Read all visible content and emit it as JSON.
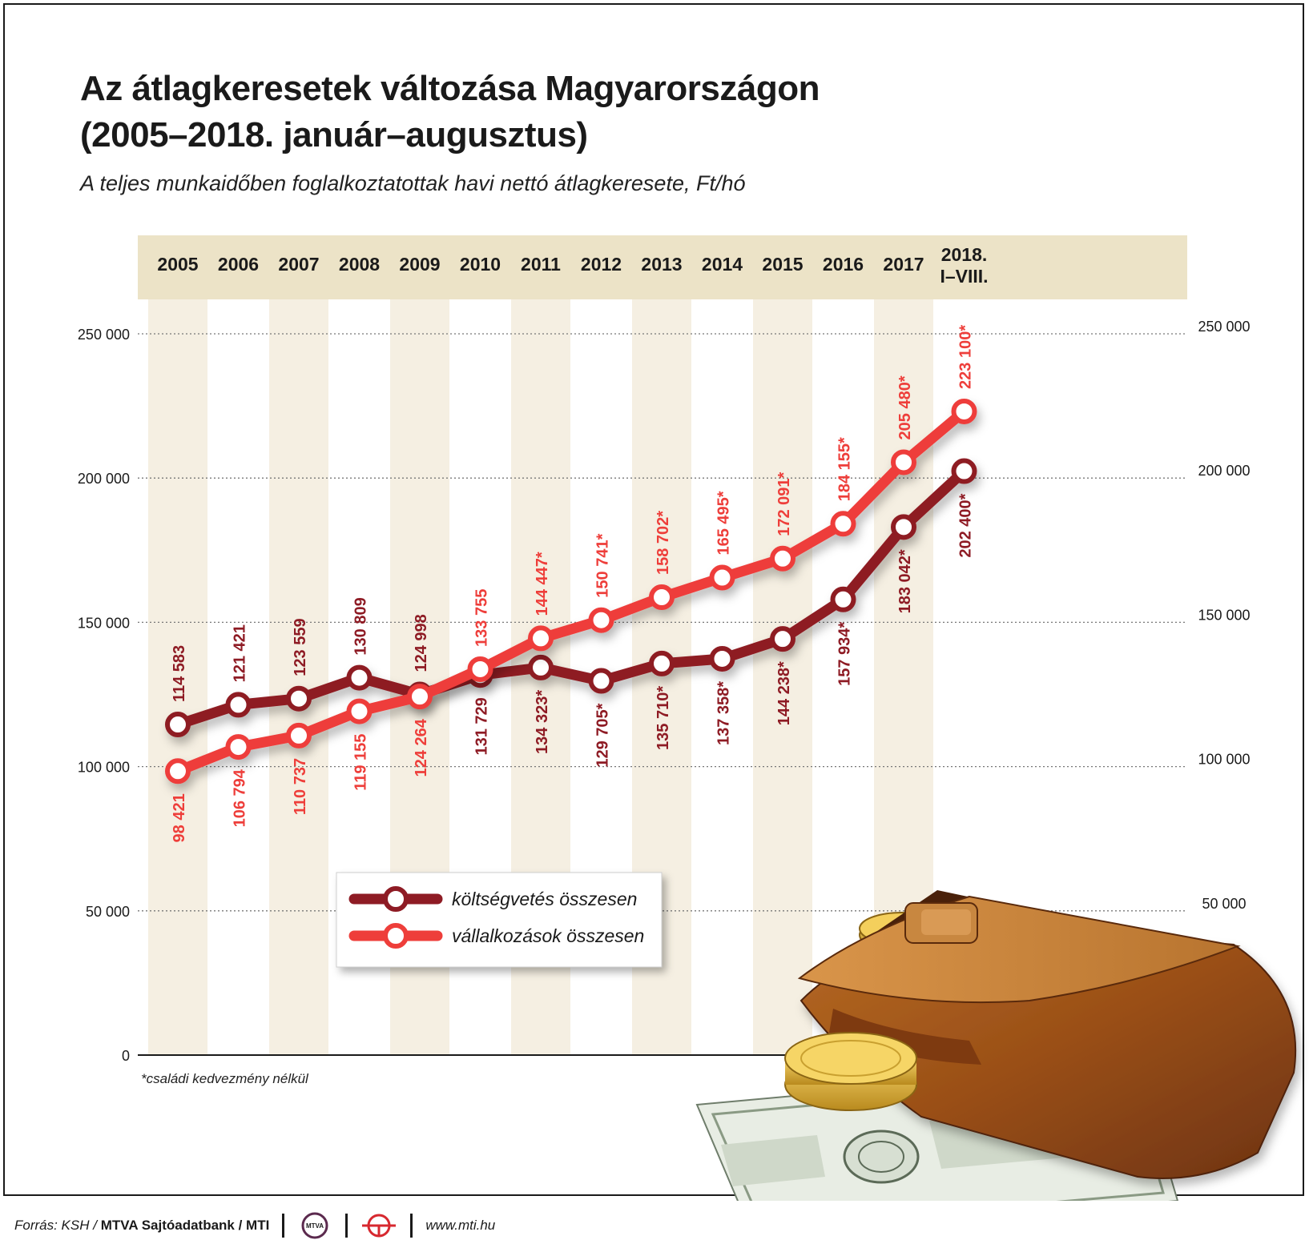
{
  "title_line1": "Az átlagkeresetek változása Magyarországon",
  "title_line2": "(2005–2018. január–augusztus)",
  "subtitle": "A teljes munkaidőben foglalkoztatottak havi nettó átlagkeresete, Ft/hó",
  "footnote": "*családi kedvezmény nélkül",
  "footer": {
    "source_prefix": "Forrás: KSH /",
    "source_bold": "MTVA Sajtóadatbank / MTI",
    "logo_text": "MTVA",
    "url": "www.mti.hu"
  },
  "colors": {
    "band": "#f5efe2",
    "header_band": "#ece3c7",
    "koltsegvetes": "#8e1b24",
    "vallalkozasok": "#ee3e3a"
  },
  "chart_data": {
    "type": "line",
    "categories": [
      "2005",
      "2006",
      "2007",
      "2008",
      "2009",
      "2010",
      "2011",
      "2012",
      "2013",
      "2014",
      "2015",
      "2016",
      "2017",
      "2018. I–VIII."
    ],
    "category_labels": [
      [
        "2005"
      ],
      [
        "2006"
      ],
      [
        "2007"
      ],
      [
        "2008"
      ],
      [
        "2009"
      ],
      [
        "2010"
      ],
      [
        "2011"
      ],
      [
        "2012"
      ],
      [
        "2013"
      ],
      [
        "2014"
      ],
      [
        "2015"
      ],
      [
        "2016"
      ],
      [
        "2017"
      ],
      [
        "2018.",
        "I–VIII."
      ]
    ],
    "ylim": [
      0,
      250000
    ],
    "yticks": [
      0,
      50000,
      100000,
      150000,
      200000,
      250000
    ],
    "ytick_labels_left": [
      "0",
      "50 000",
      "100 000",
      "150 000",
      "200 000",
      "250 000"
    ],
    "ytick_labels_right": [
      "50 000",
      "100 000",
      "150 000",
      "200 000",
      "250 000"
    ],
    "grid": true,
    "legend_position": "center-left",
    "series": [
      {
        "name": "költségvetés összesen",
        "values": [
          114583,
          121421,
          123559,
          130809,
          124998,
          131729,
          134323,
          129705,
          135710,
          137358,
          144238,
          157934,
          183042,
          202400
        ],
        "labels": [
          "114 583",
          "121 421",
          "123 559",
          "130 809",
          "124 998",
          "131 729",
          "134 323*",
          "129 705*",
          "135 710*",
          "137 358*",
          "144 238*",
          "157 934*",
          "183 042*",
          "202 400*"
        ],
        "label_side": [
          "above",
          "above",
          "above",
          "above",
          "above",
          "below",
          "below",
          "below",
          "below",
          "below",
          "below",
          "below",
          "below",
          "below"
        ]
      },
      {
        "name": "vállalkozások összesen",
        "values": [
          98421,
          106794,
          110737,
          119155,
          124264,
          133755,
          144447,
          150741,
          158702,
          165495,
          172091,
          184155,
          205480,
          223100
        ],
        "labels": [
          "98 421",
          "106 794",
          "110 737",
          "119 155",
          "124 264",
          "133 755",
          "144 447*",
          "150 741*",
          "158 702*",
          "165 495*",
          "172 091*",
          "184 155*",
          "205 480*",
          "223 100*"
        ],
        "label_side": [
          "below",
          "below",
          "below",
          "below",
          "below",
          "above",
          "above",
          "above",
          "above",
          "above",
          "above",
          "above",
          "above",
          "above"
        ]
      }
    ]
  }
}
